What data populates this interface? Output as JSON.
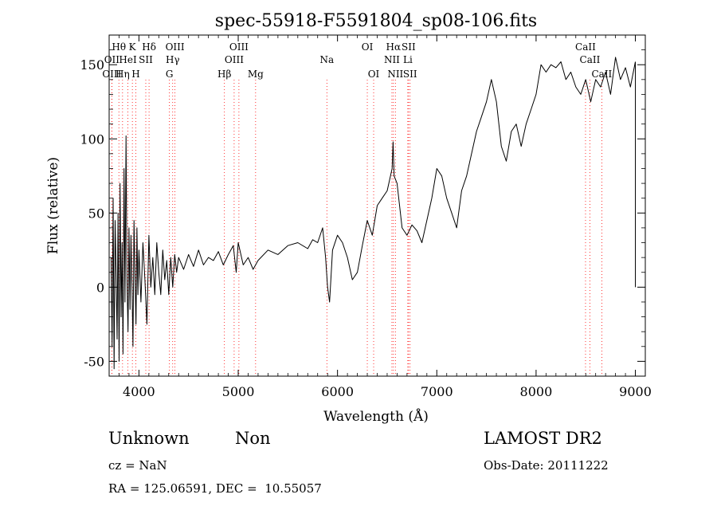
{
  "chart_data": {
    "type": "line",
    "title": "spec-55918-F5591804_sp08-106.fits",
    "xlabel": "Wavelength (Å)",
    "ylabel": "Flux (relative)",
    "xlim": [
      3700,
      9100
    ],
    "ylim": [
      -60,
      170
    ],
    "x_ticks": [
      4000,
      5000,
      6000,
      7000,
      8000,
      9000
    ],
    "y_ticks": [
      -50,
      0,
      50,
      100,
      150
    ],
    "grid": false,
    "line_color": "#000000",
    "marker_color": "#ff0000",
    "series": [
      {
        "values": [
          [
            3720,
            20
          ],
          [
            3730,
            -40
          ],
          [
            3740,
            60
          ],
          [
            3750,
            -55
          ],
          [
            3760,
            45
          ],
          [
            3770,
            10
          ],
          [
            3780,
            -35
          ],
          [
            3790,
            50
          ],
          [
            3800,
            -50
          ],
          [
            3810,
            70
          ],
          [
            3820,
            -20
          ],
          [
            3830,
            30
          ],
          [
            3840,
            -45
          ],
          [
            3850,
            80
          ],
          [
            3860,
            -10
          ],
          [
            3870,
            102
          ],
          [
            3880,
            5
          ],
          [
            3890,
            -30
          ],
          [
            3900,
            40
          ],
          [
            3910,
            -15
          ],
          [
            3920,
            35
          ],
          [
            3930,
            0
          ],
          [
            3940,
            -40
          ],
          [
            3950,
            45
          ],
          [
            3960,
            10
          ],
          [
            3970,
            -25
          ],
          [
            3980,
            40
          ],
          [
            3990,
            -5
          ],
          [
            4000,
            25
          ],
          [
            4020,
            -10
          ],
          [
            4040,
            30
          ],
          [
            4060,
            5
          ],
          [
            4080,
            -25
          ],
          [
            4100,
            35
          ],
          [
            4120,
            0
          ],
          [
            4140,
            20
          ],
          [
            4160,
            -5
          ],
          [
            4180,
            30
          ],
          [
            4200,
            10
          ],
          [
            4220,
            -5
          ],
          [
            4240,
            25
          ],
          [
            4260,
            5
          ],
          [
            4280,
            18
          ],
          [
            4300,
            -5
          ],
          [
            4320,
            20
          ],
          [
            4340,
            0
          ],
          [
            4360,
            22
          ],
          [
            4380,
            10
          ],
          [
            4400,
            20
          ],
          [
            4450,
            12
          ],
          [
            4500,
            22
          ],
          [
            4550,
            14
          ],
          [
            4600,
            25
          ],
          [
            4650,
            15
          ],
          [
            4700,
            20
          ],
          [
            4750,
            18
          ],
          [
            4800,
            24
          ],
          [
            4850,
            15
          ],
          [
            4900,
            22
          ],
          [
            4950,
            28
          ],
          [
            4980,
            10
          ],
          [
            5000,
            30
          ],
          [
            5050,
            15
          ],
          [
            5100,
            20
          ],
          [
            5150,
            12
          ],
          [
            5200,
            18
          ],
          [
            5300,
            25
          ],
          [
            5400,
            22
          ],
          [
            5500,
            28
          ],
          [
            5600,
            30
          ],
          [
            5700,
            26
          ],
          [
            5750,
            32
          ],
          [
            5800,
            30
          ],
          [
            5850,
            40
          ],
          [
            5880,
            20
          ],
          [
            5900,
            0
          ],
          [
            5920,
            -10
          ],
          [
            5950,
            25
          ],
          [
            6000,
            35
          ],
          [
            6050,
            30
          ],
          [
            6100,
            20
          ],
          [
            6150,
            5
          ],
          [
            6200,
            10
          ],
          [
            6250,
            28
          ],
          [
            6300,
            45
          ],
          [
            6350,
            35
          ],
          [
            6400,
            55
          ],
          [
            6450,
            60
          ],
          [
            6500,
            65
          ],
          [
            6550,
            80
          ],
          [
            6560,
            98
          ],
          [
            6570,
            75
          ],
          [
            6600,
            70
          ],
          [
            6650,
            40
          ],
          [
            6700,
            35
          ],
          [
            6750,
            42
          ],
          [
            6800,
            38
          ],
          [
            6850,
            30
          ],
          [
            6900,
            45
          ],
          [
            6950,
            60
          ],
          [
            7000,
            80
          ],
          [
            7050,
            75
          ],
          [
            7100,
            60
          ],
          [
            7150,
            50
          ],
          [
            7200,
            40
          ],
          [
            7250,
            65
          ],
          [
            7300,
            75
          ],
          [
            7350,
            90
          ],
          [
            7400,
            105
          ],
          [
            7450,
            115
          ],
          [
            7500,
            125
          ],
          [
            7550,
            140
          ],
          [
            7600,
            125
          ],
          [
            7650,
            95
          ],
          [
            7700,
            85
          ],
          [
            7750,
            105
          ],
          [
            7800,
            110
          ],
          [
            7850,
            95
          ],
          [
            7900,
            110
          ],
          [
            7950,
            120
          ],
          [
            8000,
            130
          ],
          [
            8050,
            150
          ],
          [
            8100,
            145
          ],
          [
            8150,
            150
          ],
          [
            8200,
            148
          ],
          [
            8250,
            152
          ],
          [
            8300,
            140
          ],
          [
            8350,
            145
          ],
          [
            8400,
            135
          ],
          [
            8450,
            130
          ],
          [
            8500,
            140
          ],
          [
            8550,
            125
          ],
          [
            8600,
            140
          ],
          [
            8650,
            135
          ],
          [
            8700,
            145
          ],
          [
            8750,
            130
          ],
          [
            8800,
            155
          ],
          [
            8850,
            140
          ],
          [
            8900,
            148
          ],
          [
            8950,
            135
          ],
          [
            9000,
            152
          ]
        ]
      }
    ],
    "lines": [
      {
        "label": "Hθ",
        "x": 3798,
        "row": 1,
        "color": "#000000"
      },
      {
        "label": "OII",
        "x": 3727,
        "row": 2,
        "color": "#000000"
      },
      {
        "label": "OIII",
        "x": 3727,
        "row": 3,
        "color": "#000000"
      },
      {
        "label": "K",
        "x": 3934,
        "row": 1,
        "color": "#000000"
      },
      {
        "label": "HeI",
        "x": 3889,
        "row": 2,
        "color": "#000000"
      },
      {
        "label": "Hη",
        "x": 3835,
        "row": 3,
        "color": "#000000"
      },
      {
        "label": "H",
        "x": 3969,
        "row": 3,
        "color": "#000000"
      },
      {
        "label": "SII",
        "x": 4069,
        "row": 2,
        "color": "#000000"
      },
      {
        "label": "Hδ",
        "x": 4102,
        "row": 1,
        "color": "#000000"
      },
      {
        "label": "OIII",
        "x": 4363,
        "row": 1,
        "color": "#000000"
      },
      {
        "label": "Hγ",
        "x": 4340,
        "row": 2,
        "color": "#000000"
      },
      {
        "label": "G",
        "x": 4307,
        "row": 3,
        "color": "#000000"
      },
      {
        "label": "OIII",
        "x": 5007,
        "row": 1,
        "color": "#000000"
      },
      {
        "label": "OIII",
        "x": 4959,
        "row": 2,
        "color": "#000000"
      },
      {
        "label": "Hβ",
        "x": 4861,
        "row": 3,
        "color": "#000000"
      },
      {
        "label": "Mg",
        "x": 5175,
        "row": 3,
        "color": "#000000"
      },
      {
        "label": "Na",
        "x": 5893,
        "row": 2,
        "color": "#000000"
      },
      {
        "label": "OI",
        "x": 6300,
        "row": 1,
        "color": "#000000"
      },
      {
        "label": "OI",
        "x": 6364,
        "row": 3,
        "color": "#000000"
      },
      {
        "label": "Hα",
        "x": 6563,
        "row": 1,
        "color": "#000000"
      },
      {
        "label": "SII",
        "x": 6716,
        "row": 1,
        "color": "#000000"
      },
      {
        "label": "NII",
        "x": 6548,
        "row": 2,
        "color": "#000000"
      },
      {
        "label": "Li",
        "x": 6708,
        "row": 2,
        "color": "#000000"
      },
      {
        "label": "NII",
        "x": 6583,
        "row": 3,
        "color": "#000000"
      },
      {
        "label": "SII",
        "x": 6731,
        "row": 3,
        "color": "#000000"
      },
      {
        "label": "CaII",
        "x": 8498,
        "row": 1,
        "color": "#000000"
      },
      {
        "label": "CaII",
        "x": 8542,
        "row": 2,
        "color": "#000000"
      },
      {
        "label": "CaII",
        "x": 8662,
        "row": 3,
        "color": "#000000"
      }
    ]
  },
  "info": {
    "class": "Unknown",
    "subclass": "Non",
    "cz": "cz = NaN",
    "coords": "RA = 125.06591, DEC =  10.55057",
    "survey": "LAMOST DR2",
    "obs_date": "Obs-Date: 20111222"
  }
}
